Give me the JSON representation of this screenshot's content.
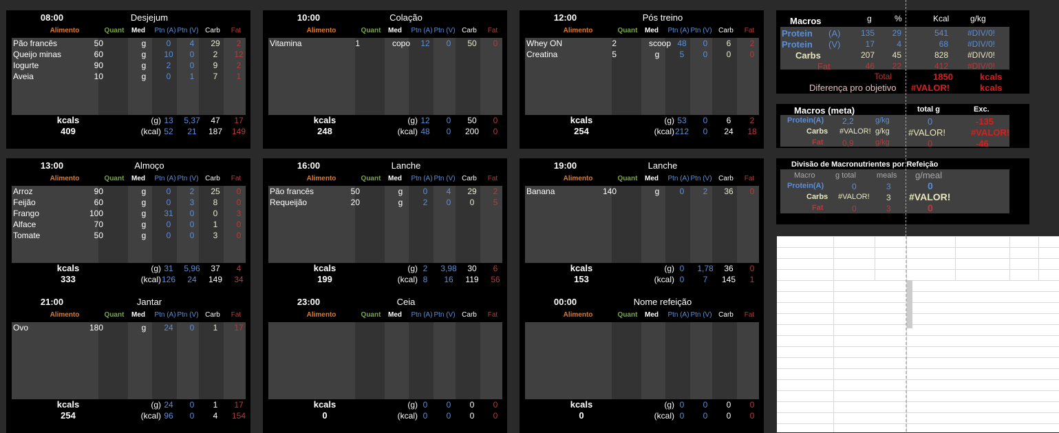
{
  "headers": {
    "alimento": "Alimento",
    "quant": "Quant",
    "med": "Med",
    "ptn_a": "Ptn (A)",
    "ptn_v": "Ptn (V)",
    "carb": "Carb",
    "fat": "Fat",
    "kcals": "kcals",
    "g": "(g)",
    "kcal": "(kcal)"
  },
  "meals": [
    {
      "time": "08:00",
      "name": "Desjejum",
      "items": [
        {
          "name": "Pão francês",
          "q": "50",
          "m": "g",
          "pa": "0",
          "pv": "4",
          "c": "29",
          "f": "2"
        },
        {
          "name": "Queijo minas",
          "q": "60",
          "m": "g",
          "pa": "10",
          "pv": "0",
          "c": "2",
          "f": "12"
        },
        {
          "name": "Iogurte",
          "q": "90",
          "m": "g",
          "pa": "2",
          "pv": "0",
          "c": "9",
          "f": "2"
        },
        {
          "name": "Aveia",
          "q": "10",
          "m": "g",
          "pa": "0",
          "pv": "1",
          "c": "7",
          "f": "1"
        }
      ],
      "kcal_total": "409",
      "g": {
        "pa": "13",
        "pv": "5,37",
        "c": "47",
        "f": "17"
      },
      "k": {
        "pa": "52",
        "pv": "21",
        "c": "187",
        "f": "149"
      }
    },
    {
      "time": "10:00",
      "name": "Colação",
      "items": [
        {
          "name": "Vitamina",
          "q": "1",
          "m": "copo",
          "pa": "12",
          "pv": "0",
          "c": "50",
          "f": "0"
        }
      ],
      "kcal_total": "248",
      "g": {
        "pa": "12",
        "pv": "0",
        "c": "50",
        "f": "0"
      },
      "k": {
        "pa": "48",
        "pv": "0",
        "c": "200",
        "f": "0"
      }
    },
    {
      "time": "12:00",
      "name": "Pós treino",
      "items": [
        {
          "name": "Whey ON",
          "q": "2",
          "m": "scoop",
          "pa": "48",
          "pv": "0",
          "c": "6",
          "f": "2"
        },
        {
          "name": "Creatina",
          "q": "5",
          "m": "g",
          "pa": "5",
          "pv": "0",
          "c": "0",
          "f": "0"
        }
      ],
      "kcal_total": "254",
      "g": {
        "pa": "53",
        "pv": "0",
        "c": "6",
        "f": "2"
      },
      "k": {
        "pa": "212",
        "pv": "0",
        "c": "24",
        "f": "18"
      }
    },
    {
      "time": "13:00",
      "name": "Almoço",
      "items": [
        {
          "name": "Arroz",
          "q": "90",
          "m": "g",
          "pa": "0",
          "pv": "2",
          "c": "25",
          "f": "0"
        },
        {
          "name": "Feijão",
          "q": "60",
          "m": "g",
          "pa": "0",
          "pv": "3",
          "c": "8",
          "f": "0"
        },
        {
          "name": "Frango",
          "q": "100",
          "m": "g",
          "pa": "31",
          "pv": "0",
          "c": "0",
          "f": "3"
        },
        {
          "name": "Alface",
          "q": "70",
          "m": "g",
          "pa": "0",
          "pv": "0",
          "c": "1",
          "f": "0"
        },
        {
          "name": "Tomate",
          "q": "50",
          "m": "g",
          "pa": "0",
          "pv": "0",
          "c": "3",
          "f": "0"
        }
      ],
      "kcal_total": "333",
      "g": {
        "pa": "31",
        "pv": "5,96",
        "c": "37",
        "f": "4"
      },
      "k": {
        "pa": "126",
        "pv": "24",
        "c": "149",
        "f": "34"
      }
    },
    {
      "time": "16:00",
      "name": "Lanche",
      "items": [
        {
          "name": "Pão francês",
          "q": "50",
          "m": "g",
          "pa": "0",
          "pv": "4",
          "c": "29",
          "f": "2"
        },
        {
          "name": "Requeijão",
          "q": "20",
          "m": "g",
          "pa": "2",
          "pv": "0",
          "c": "0",
          "f": "5"
        }
      ],
      "kcal_total": "199",
      "g": {
        "pa": "2",
        "pv": "3,98",
        "c": "30",
        "f": "6"
      },
      "k": {
        "pa": "8",
        "pv": "16",
        "c": "119",
        "f": "56"
      }
    },
    {
      "time": "19:00",
      "name": "Lanche",
      "items": [
        {
          "name": "Banana",
          "q": "140",
          "m": "g",
          "pa": "0",
          "pv": "2",
          "c": "36",
          "f": "0"
        }
      ],
      "kcal_total": "153",
      "g": {
        "pa": "0",
        "pv": "1,78",
        "c": "36",
        "f": "0"
      },
      "k": {
        "pa": "0",
        "pv": "7",
        "c": "145",
        "f": "1"
      }
    },
    {
      "time": "21:00",
      "name": "Jantar",
      "items": [
        {
          "name": "Ovo",
          "q": "180",
          "m": "g",
          "pa": "24",
          "pv": "0",
          "c": "1",
          "f": "17"
        }
      ],
      "kcal_total": "254",
      "g": {
        "pa": "24",
        "pv": "0",
        "c": "1",
        "f": "17"
      },
      "k": {
        "pa": "96",
        "pv": "0",
        "c": "4",
        "f": "154"
      }
    },
    {
      "time": "23:00",
      "name": "Ceia",
      "items": [],
      "kcal_total": "0",
      "g": {
        "pa": "0",
        "pv": "0",
        "c": "0",
        "f": "0"
      },
      "k": {
        "pa": "0",
        "pv": "0",
        "c": "0",
        "f": "0"
      }
    },
    {
      "time": "00:00",
      "name": "Nome refeição",
      "items": [],
      "kcal_total": "0",
      "g": {
        "pa": "0",
        "pv": "0",
        "c": "0",
        "f": "0"
      },
      "k": {
        "pa": "0",
        "pv": "0",
        "c": "0",
        "f": "0"
      }
    }
  ],
  "macros": {
    "title": "Macros",
    "h_g": "g",
    "h_pct": "%",
    "h_kcal": "Kcal",
    "h_gkg": "g/kg",
    "rows": [
      {
        "label": "Protein",
        "sub": "(A)",
        "g": "135",
        "pct": "29",
        "kcal": "541",
        "gkg": "#DIV/0!"
      },
      {
        "label": "Protein",
        "sub": "(V)",
        "g": "17",
        "pct": "4",
        "kcal": "68",
        "gkg": "#DIV/0!"
      },
      {
        "label": "Carbs",
        "sub": "",
        "g": "207",
        "pct": "45",
        "kcal": "828",
        "gkg": "#DIV/0!"
      },
      {
        "label": "Fat",
        "sub": "",
        "g": "46",
        "pct": "22",
        "kcal": "412",
        "gkg": "#DIV/0!"
      }
    ],
    "total_label": "Total",
    "total_value": "1850",
    "total_unit": "kcals",
    "diff_label": "Diferença pro objetivo",
    "diff_value": "#VALOR!",
    "diff_unit": "kcals"
  },
  "meta": {
    "title": "Macros (meta)",
    "h_total": "total g",
    "h_exc": "Exc.",
    "rows": [
      {
        "label": "Protein(A)",
        "val": "2,2",
        "unit": "g/kg",
        "total": "0",
        "exc": "-135"
      },
      {
        "label": "Carbs",
        "val": "#VALOR!",
        "unit": "g/kg",
        "total": "#VALOR!",
        "exc": "#VALOR!"
      },
      {
        "label": "Fat",
        "val": "0,9",
        "unit": "g/kg",
        "total": "0",
        "exc": "-46"
      }
    ]
  },
  "division": {
    "title": "Divisão de Macronutrientes por Refeição",
    "h_macro": "Macro",
    "h_gtotal": "g total",
    "h_meals": "meals",
    "h_gmeal": "g/meal",
    "rows": [
      {
        "label": "Protein(A)",
        "gtotal": "0",
        "meals": "3",
        "gmeal": "0"
      },
      {
        "label": "Carbs",
        "gtotal": "#VALOR!",
        "meals": "3",
        "gmeal": "#VALOR!"
      },
      {
        "label": "Fat",
        "gtotal": "0",
        "meals": "3",
        "gmeal": "0"
      }
    ]
  }
}
